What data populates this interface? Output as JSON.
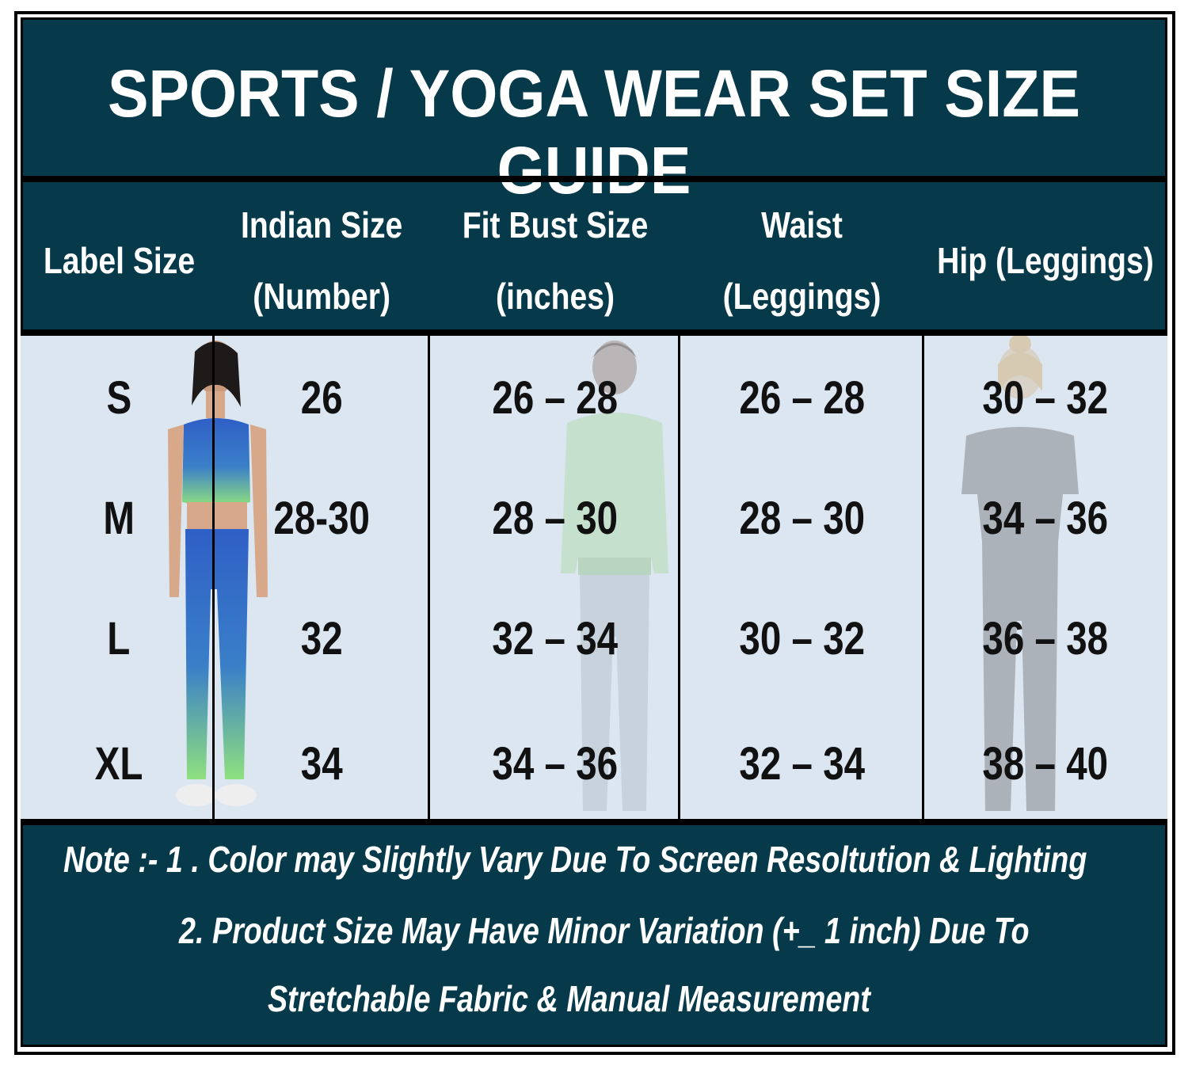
{
  "title": "SPORTS / YOGA WEAR SET SIZE GUIDE",
  "headers": {
    "label": "Label Size",
    "indian_1": "Indian Size",
    "indian_2": "(Number)",
    "bust_1": "Fit Bust Size",
    "bust_2": "(inches)",
    "waist_1": "Waist",
    "waist_2": "(Leggings)",
    "hip": "Hip (Leggings)"
  },
  "rows": [
    {
      "label": "S",
      "indian": "26",
      "bust": "26 – 28",
      "waist": "26 – 28",
      "hip": "30 – 32"
    },
    {
      "label": "M",
      "indian": "28-30",
      "bust": "28 – 30",
      "waist": "28 – 30",
      "hip": "34 – 36"
    },
    {
      "label": "L",
      "indian": "32",
      "bust": "32 – 34",
      "waist": "30 – 32",
      "hip": "36 – 38"
    },
    {
      "label": "XL",
      "indian": "34",
      "bust": "34 – 36",
      "waist": "32 – 34",
      "hip": "38 – 40"
    }
  ],
  "notes": {
    "line1": "Note :- 1 . Color may Slightly Vary Due To Screen Resoltution & Lighting",
    "line2": "2. Product Size May Have Minor Variation (+_ 1 inch) Due To",
    "line3": "Stretchable Fabric & Manual Measurement"
  },
  "colors": {
    "panel": "#063a4a",
    "body": "#dbe6f1",
    "text_light": "#ffffff",
    "text_dark": "#111111"
  }
}
